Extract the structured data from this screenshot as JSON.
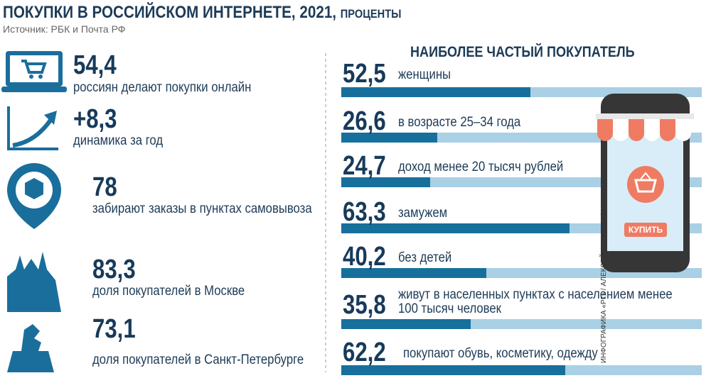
{
  "header": {
    "title": "ПОКУПКИ В РОССИЙСКОМ ИНТЕРНЕТЕ, 2021,",
    "unit": "ПРОЦЕНТЫ",
    "source": "Источник: РБК и Почта РФ"
  },
  "stats": [
    {
      "value": "54,4",
      "label": "россиян делают покупки онлайн"
    },
    {
      "value": "+8,3",
      "label": "динамика за год"
    },
    {
      "value": "78",
      "label": "забирают заказы в пунктах самовывоза"
    },
    {
      "value": "83,3",
      "label": "доля покупателей в Москве"
    },
    {
      "value": "73,1",
      "label": "доля покупателей в Санкт-Петербурге"
    }
  ],
  "chart_data": {
    "type": "bar",
    "orientation": "horizontal",
    "title": "НАИБОЛЕЕ ЧАСТЫЙ ПОКУПАТЕЛЬ",
    "categories": [
      "женщины",
      "в возрасте 25–34 года",
      "доход менее 20 тысяч рублей",
      "замужем",
      "без детей",
      "живут в населенных пунктах с населением менее 100 тысяч человек",
      "покупают обувь, косметику, одежду"
    ],
    "values": [
      52.5,
      26.6,
      24.7,
      63.3,
      40.2,
      35.8,
      62.2
    ],
    "value_labels": [
      "52,5",
      "26,6",
      "24,7",
      "63,3",
      "40,2",
      "35,8",
      "62,2"
    ],
    "xlim": [
      0,
      100
    ],
    "color": "#17709b",
    "track_color": "#a9d0e5"
  },
  "phone": {
    "button": "КУПИТЬ"
  },
  "credit": "ИНФОГРАФИКА «РГ» / АЛЕКСЕЙ СТРИГИН / АННА ДУРОВА"
}
